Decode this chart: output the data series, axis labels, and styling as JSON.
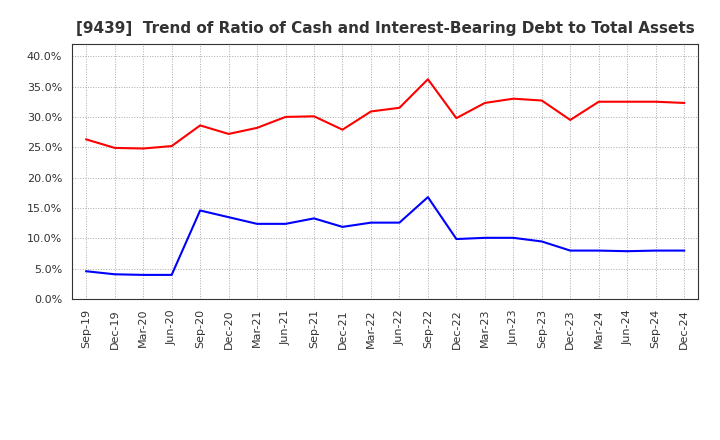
{
  "title": "[9439]  Trend of Ratio of Cash and Interest-Bearing Debt to Total Assets",
  "x_labels": [
    "Sep-19",
    "Dec-19",
    "Mar-20",
    "Jun-20",
    "Sep-20",
    "Dec-20",
    "Mar-21",
    "Jun-21",
    "Sep-21",
    "Dec-21",
    "Mar-22",
    "Jun-22",
    "Sep-22",
    "Dec-22",
    "Mar-23",
    "Jun-23",
    "Sep-23",
    "Dec-23",
    "Mar-24",
    "Jun-24",
    "Sep-24",
    "Dec-24"
  ],
  "cash": [
    0.263,
    0.249,
    0.248,
    0.252,
    0.286,
    0.272,
    0.282,
    0.3,
    0.301,
    0.279,
    0.309,
    0.315,
    0.362,
    0.298,
    0.323,
    0.33,
    0.327,
    0.295,
    0.325,
    0.325,
    0.325,
    0.323
  ],
  "interest_bearing_debt": [
    0.046,
    0.041,
    0.04,
    0.04,
    0.146,
    0.135,
    0.124,
    0.124,
    0.133,
    0.119,
    0.126,
    0.126,
    0.168,
    0.099,
    0.101,
    0.101,
    0.095,
    0.08,
    0.08,
    0.079,
    0.08,
    0.08
  ],
  "cash_color": "#FF0000",
  "debt_color": "#0000FF",
  "ylim": [
    0.0,
    0.42
  ],
  "yticks": [
    0.0,
    0.05,
    0.1,
    0.15,
    0.2,
    0.25,
    0.3,
    0.35,
    0.4
  ],
  "background_color": "#FFFFFF",
  "grid_color": "#AAAAAA",
  "title_fontsize": 11,
  "tick_fontsize": 8,
  "legend_fontsize": 9
}
